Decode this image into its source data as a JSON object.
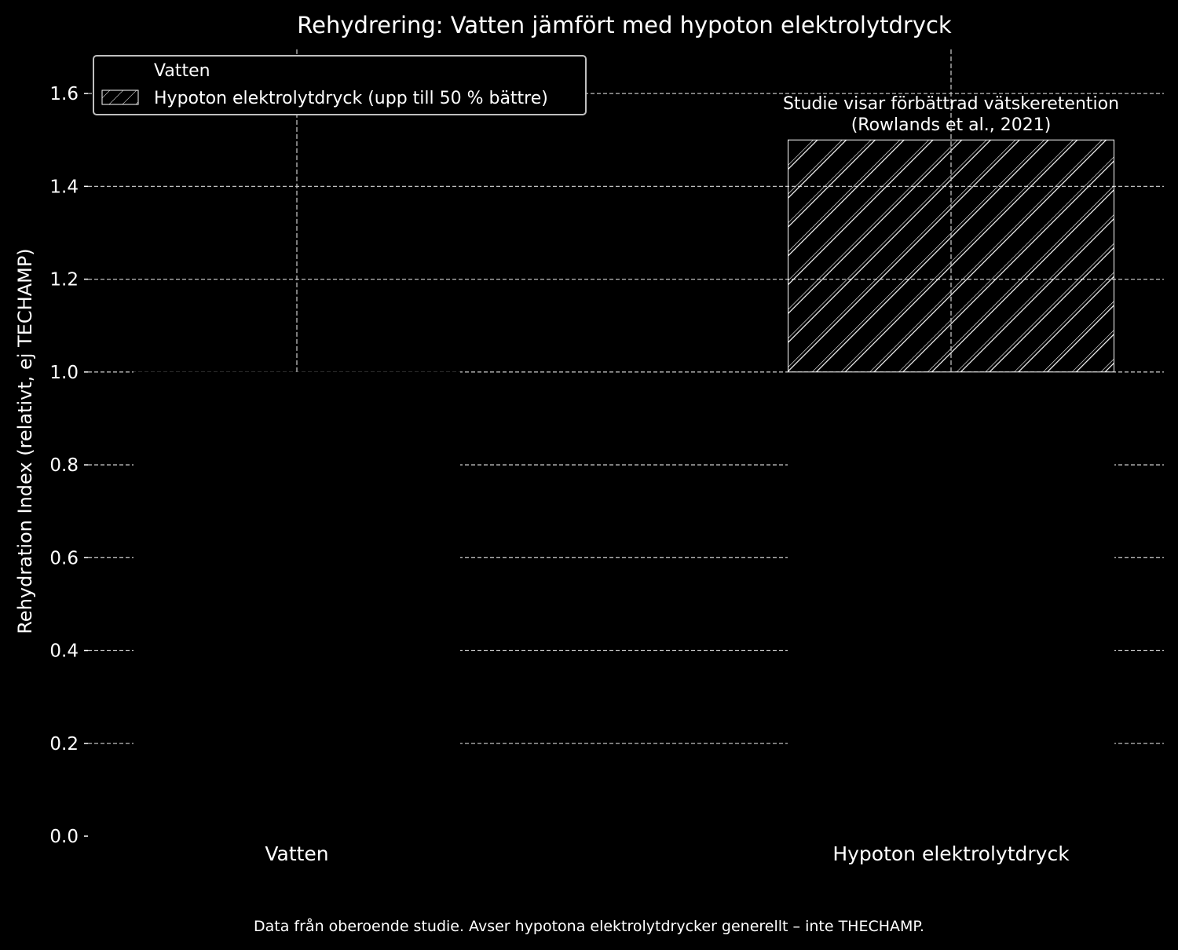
{
  "chart_data": {
    "type": "bar",
    "title": "Rehydrering: Vatten jämfört med hypoton elektrolytdryck",
    "xlabel": "",
    "ylabel": "Rehydration Index (relativt, ej T­ECHAMP)",
    "categories": [
      "Vatten",
      "Hypoton elektrolytdryck"
    ],
    "series": [
      {
        "name": "Vatten",
        "values": [
          1.0,
          null
        ],
        "pattern": "solid"
      },
      {
        "name": "Hypoton elektrolytdryck (upp till 50 % bättre)",
        "values": [
          null,
          1.0
        ],
        "pattern": "hatch"
      }
    ],
    "hatched_overlay": {
      "category": "Hypoton elektrolytdryck",
      "from": 1.0,
      "to": 1.5
    },
    "error_ranges": [
      {
        "category": "Vatten",
        "low": 1.0,
        "high": 1.7
      },
      {
        "category": "Hypoton elektrolytdryck",
        "low": 1.0,
        "high": 1.7
      }
    ],
    "ylim": [
      0,
      1.7
    ],
    "yticks": [
      0.0,
      0.2,
      0.4,
      0.6,
      0.8,
      1.0,
      1.2,
      1.4,
      1.6
    ],
    "ytick_labels": [
      "0.0",
      "0.2",
      "0.4",
      "0.6",
      "0.8",
      "1.0",
      "1.2",
      "1.4",
      "1.6"
    ],
    "grid": "y-dashed",
    "legend_position": "top-left",
    "annotation": {
      "lines": [
        "Studie visar förbättrad vätskeretention",
        "(Rowlands et al., 2021)"
      ],
      "category": "Hypoton elektrolytdryck"
    },
    "footnote": "Data från oberoende studie. Avser hypotona elektrolytdrycker generellt – inte THECHAMP.",
    "colors": {
      "background": "#000000",
      "foreground": "#ffffff",
      "grid": "#bfbfbf",
      "bar_edge": "#ffffff",
      "hatch": "#ffffff",
      "legend_edge": "#bfbfbf"
    }
  }
}
